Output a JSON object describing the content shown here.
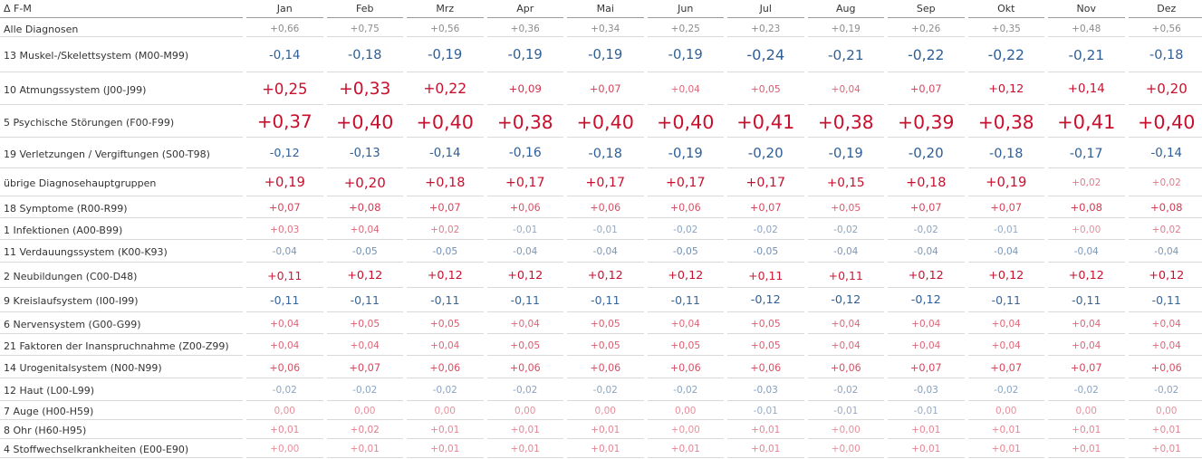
{
  "chart_data": {
    "type": "table",
    "title": "",
    "measure_label": "Δ F-M",
    "months": [
      "Jan",
      "Feb",
      "Mrz",
      "Apr",
      "Mai",
      "Jun",
      "Jul",
      "Aug",
      "Sep",
      "Okt",
      "Nov",
      "Dez"
    ],
    "rows": [
      {
        "label": "Alle Diagnosen",
        "values": [
          0.66,
          0.75,
          0.56,
          0.36,
          0.34,
          0.25,
          0.23,
          0.19,
          0.26,
          0.35,
          0.48,
          0.56
        ],
        "text": [
          "+0,66",
          "+0,75",
          "+0,56",
          "+0,36",
          "+0,34",
          "+0,25",
          "+0,23",
          "+0,19",
          "+0,26",
          "+0,35",
          "+0,48",
          "+0,56"
        ]
      },
      {
        "label": "13 Muskel-/Skelettsystem  (M00-M99)",
        "values": [
          -0.14,
          -0.18,
          -0.19,
          -0.19,
          -0.19,
          -0.19,
          -0.24,
          -0.21,
          -0.22,
          -0.22,
          -0.21,
          -0.18
        ],
        "text": [
          "-0,14",
          "-0,18",
          "-0,19",
          "-0,19",
          "-0,19",
          "-0,19",
          "-0,24",
          "-0,21",
          "-0,22",
          "-0,22",
          "-0,21",
          "-0,18"
        ]
      },
      {
        "label": "10 Atmungssystem (J00-J99)",
        "values": [
          0.25,
          0.33,
          0.22,
          0.09,
          0.07,
          0.04,
          0.05,
          0.04,
          0.07,
          0.12,
          0.14,
          0.2
        ],
        "text": [
          "+0,25",
          "+0,33",
          "+0,22",
          "+0,09",
          "+0,07",
          "+0,04",
          "+0,05",
          "+0,04",
          "+0,07",
          "+0,12",
          "+0,14",
          "+0,20"
        ]
      },
      {
        "label": "5 Psychische Störungen (F00-F99)",
        "values": [
          0.37,
          0.4,
          0.4,
          0.38,
          0.4,
          0.4,
          0.41,
          0.38,
          0.39,
          0.38,
          0.41,
          0.4
        ],
        "text": [
          "+0,37",
          "+0,40",
          "+0,40",
          "+0,38",
          "+0,40",
          "+0,40",
          "+0,41",
          "+0,38",
          "+0,39",
          "+0,38",
          "+0,41",
          "+0,40"
        ]
      },
      {
        "label": "19 Verletzungen / Vergiftungen (S00-T98)",
        "values": [
          -0.12,
          -0.13,
          -0.14,
          -0.16,
          -0.18,
          -0.19,
          -0.2,
          -0.19,
          -0.2,
          -0.18,
          -0.17,
          -0.14
        ],
        "text": [
          "-0,12",
          "-0,13",
          "-0,14",
          "-0,16",
          "-0,18",
          "-0,19",
          "-0,20",
          "-0,19",
          "-0,20",
          "-0,18",
          "-0,17",
          "-0,14"
        ]
      },
      {
        "label": "übrige Diagnosehauptgruppen",
        "values": [
          0.19,
          0.2,
          0.18,
          0.17,
          0.17,
          0.17,
          0.17,
          0.15,
          0.18,
          0.19,
          0.02,
          0.02
        ],
        "text": [
          "+0,19",
          "+0,20",
          "+0,18",
          "+0,17",
          "+0,17",
          "+0,17",
          "+0,17",
          "+0,15",
          "+0,18",
          "+0,19",
          "+0,02",
          "+0,02"
        ]
      },
      {
        "label": "18 Symptome (R00-R99)",
        "values": [
          0.07,
          0.08,
          0.07,
          0.06,
          0.06,
          0.06,
          0.07,
          0.05,
          0.07,
          0.07,
          0.08,
          0.08
        ],
        "text": [
          "+0,07",
          "+0,08",
          "+0,07",
          "+0,06",
          "+0,06",
          "+0,06",
          "+0,07",
          "+0,05",
          "+0,07",
          "+0,07",
          "+0,08",
          "+0,08"
        ]
      },
      {
        "label": "1 Infektionen (A00-B99)",
        "values": [
          0.03,
          0.04,
          0.02,
          -0.01,
          -0.01,
          -0.02,
          -0.02,
          -0.02,
          -0.02,
          -0.01,
          0.0,
          0.02
        ],
        "text": [
          "+0,03",
          "+0,04",
          "+0,02",
          "-0,01",
          "-0,01",
          "-0,02",
          "-0,02",
          "-0,02",
          "-0,02",
          "-0,01",
          "+0,00",
          "+0,02"
        ]
      },
      {
        "label": "11 Verdauungssystem (K00-K93)",
        "values": [
          -0.04,
          -0.05,
          -0.05,
          -0.04,
          -0.04,
          -0.05,
          -0.05,
          -0.04,
          -0.04,
          -0.04,
          -0.04,
          -0.04
        ],
        "text": [
          "-0,04",
          "-0,05",
          "-0,05",
          "-0,04",
          "-0,04",
          "-0,05",
          "-0,05",
          "-0,04",
          "-0,04",
          "-0,04",
          "-0,04",
          "-0,04"
        ]
      },
      {
        "label": "2 Neubildungen (C00-D48)",
        "values": [
          0.11,
          0.12,
          0.12,
          0.12,
          0.12,
          0.12,
          0.11,
          0.11,
          0.12,
          0.12,
          0.12,
          0.12
        ],
        "text": [
          "+0,11",
          "+0,12",
          "+0,12",
          "+0,12",
          "+0,12",
          "+0,12",
          "+0,11",
          "+0,11",
          "+0,12",
          "+0,12",
          "+0,12",
          "+0,12"
        ]
      },
      {
        "label": "9 Kreislaufsystem (I00-I99)",
        "values": [
          -0.11,
          -0.11,
          -0.11,
          -0.11,
          -0.11,
          -0.11,
          -0.12,
          -0.12,
          -0.12,
          -0.11,
          -0.11,
          -0.11
        ],
        "text": [
          "-0,11",
          "-0,11",
          "-0,11",
          "-0,11",
          "-0,11",
          "-0,11",
          "-0,12",
          "-0,12",
          "-0,12",
          "-0,11",
          "-0,11",
          "-0,11"
        ]
      },
      {
        "label": "6 Nervensystem (G00-G99)",
        "values": [
          0.04,
          0.05,
          0.05,
          0.04,
          0.05,
          0.04,
          0.05,
          0.04,
          0.04,
          0.04,
          0.04,
          0.04
        ],
        "text": [
          "+0,04",
          "+0,05",
          "+0,05",
          "+0,04",
          "+0,05",
          "+0,04",
          "+0,05",
          "+0,04",
          "+0,04",
          "+0,04",
          "+0,04",
          "+0,04"
        ]
      },
      {
        "label": "21 Faktoren der Inanspruchnahme (Z00-Z99)",
        "values": [
          0.04,
          0.04,
          0.04,
          0.05,
          0.05,
          0.05,
          0.05,
          0.04,
          0.04,
          0.04,
          0.04,
          0.04
        ],
        "text": [
          "+0,04",
          "+0,04",
          "+0,04",
          "+0,05",
          "+0,05",
          "+0,05",
          "+0,05",
          "+0,04",
          "+0,04",
          "+0,04",
          "+0,04",
          "+0,04"
        ]
      },
      {
        "label": "14 Urogenitalsystem (N00-N99)",
        "values": [
          0.06,
          0.07,
          0.06,
          0.06,
          0.06,
          0.06,
          0.06,
          0.06,
          0.07,
          0.07,
          0.07,
          0.06
        ],
        "text": [
          "+0,06",
          "+0,07",
          "+0,06",
          "+0,06",
          "+0,06",
          "+0,06",
          "+0,06",
          "+0,06",
          "+0,07",
          "+0,07",
          "+0,07",
          "+0,06"
        ]
      },
      {
        "label": "12 Haut (L00-L99)",
        "values": [
          -0.02,
          -0.02,
          -0.02,
          -0.02,
          -0.02,
          -0.02,
          -0.03,
          -0.02,
          -0.03,
          -0.02,
          -0.02,
          -0.02
        ],
        "text": [
          "-0,02",
          "-0,02",
          "-0,02",
          "-0,02",
          "-0,02",
          "-0,02",
          "-0,03",
          "-0,02",
          "-0,03",
          "-0,02",
          "-0,02",
          "-0,02"
        ]
      },
      {
        "label": "7 Auge (H00-H59)",
        "values": [
          0.0,
          0.0,
          0.0,
          0.0,
          0.0,
          0.0,
          -0.01,
          -0.01,
          -0.01,
          0.0,
          0.0,
          0.0
        ],
        "text": [
          "0,00",
          "0,00",
          "0,00",
          "0,00",
          "0,00",
          "0,00",
          "-0,01",
          "-0,01",
          "-0,01",
          "0,00",
          "0,00",
          "0,00"
        ]
      },
      {
        "label": "8 Ohr (H60-H95)",
        "values": [
          0.01,
          0.02,
          0.01,
          0.01,
          0.01,
          0.0,
          0.01,
          0.0,
          0.01,
          0.01,
          0.01,
          0.01
        ],
        "text": [
          "+0,01",
          "+0,02",
          "+0,01",
          "+0,01",
          "+0,01",
          "+0,00",
          "+0,01",
          "+0,00",
          "+0,01",
          "+0,01",
          "+0,01",
          "+0,01"
        ]
      },
      {
        "label": "4 Stoffwechselkrankheiten (E00-E90)",
        "values": [
          0.0,
          0.01,
          0.01,
          0.01,
          0.01,
          0.01,
          0.01,
          0.0,
          0.01,
          0.01,
          0.01,
          0.01
        ],
        "text": [
          "+0,00",
          "+0,01",
          "+0,01",
          "+0,01",
          "+0,01",
          "+0,01",
          "+0,01",
          "+0,00",
          "+0,01",
          "+0,01",
          "+0,01",
          "+0,01"
        ]
      }
    ],
    "colors": {
      "positive_strong": "#c8102e",
      "positive_weak": "#e8909c",
      "negative_strong": "#2f5f96",
      "negative_weak": "#9fb2c9",
      "total_text": "#8c8c8c",
      "label_text": "#333333"
    }
  }
}
